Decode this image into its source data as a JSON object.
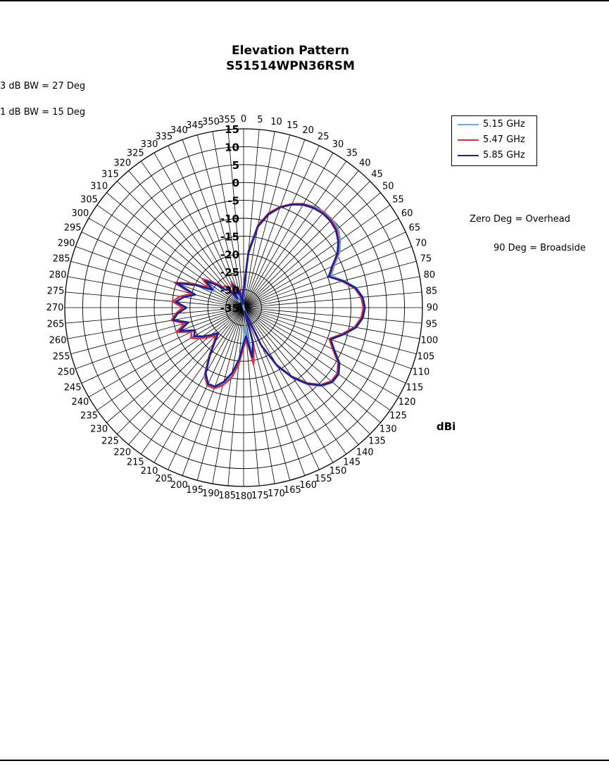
{
  "chart_data": {
    "type": "polar-line",
    "title": "Elevation Pattern",
    "subtitle": "S51514WPN36RSM",
    "ylabel": "dBi",
    "r_range": [
      -35,
      15
    ],
    "r_ticks": [
      15,
      10,
      5,
      0,
      -5,
      -10,
      -15,
      -20,
      -25,
      -30,
      -35
    ],
    "r_tick_labels": [
      "15",
      "10",
      "5",
      "0",
      "-5",
      "-10",
      "-15",
      "-20",
      "-25",
      "-30",
      "-35"
    ],
    "angle_ticks": [
      0,
      5,
      10,
      15,
      20,
      25,
      30,
      35,
      40,
      45,
      50,
      55,
      60,
      65,
      70,
      75,
      80,
      85,
      90,
      95,
      100,
      105,
      110,
      115,
      120,
      125,
      130,
      135,
      140,
      145,
      150,
      155,
      160,
      165,
      170,
      175,
      180,
      185,
      190,
      195,
      200,
      205,
      210,
      215,
      220,
      225,
      230,
      235,
      240,
      245,
      250,
      255,
      260,
      265,
      270,
      275,
      280,
      285,
      290,
      295,
      300,
      305,
      310,
      315,
      320,
      325,
      330,
      335,
      340,
      345,
      350,
      355
    ],
    "angle_tick_labels": [
      "0",
      "5",
      "10",
      "15",
      "20",
      "25",
      "30",
      "35",
      "40",
      "45",
      "50",
      "55",
      "60",
      "65",
      "70",
      "75",
      "80",
      "85",
      "90",
      "95",
      "100",
      "105",
      "110",
      "115",
      "120",
      "125",
      "130",
      "135",
      "140",
      "145",
      "150",
      "155",
      "160",
      "165",
      "170",
      "175",
      "180",
      "185",
      "190",
      "195",
      "200",
      "205",
      "210",
      "215",
      "220",
      "225",
      "230",
      "235",
      "240",
      "245",
      "250",
      "255",
      "260",
      "265",
      "270",
      "275",
      "280",
      "285",
      "290",
      "295",
      "300",
      "305",
      "310",
      "315",
      "320",
      "325",
      "330",
      "335",
      "340",
      "345",
      "350",
      "355"
    ],
    "annotations": [
      "3 dB BW = 27 Deg",
      "1 dB BW = 15 Deg",
      "Zero Deg = Overhead",
      "90 Deg = Broadside"
    ],
    "legend_position": "top-right",
    "grid": true,
    "angles": [
      0,
      5,
      10,
      15,
      20,
      25,
      30,
      35,
      40,
      45,
      50,
      55,
      60,
      65,
      70,
      75,
      80,
      85,
      90,
      95,
      100,
      105,
      110,
      115,
      120,
      125,
      130,
      135,
      140,
      145,
      150,
      155,
      160,
      165,
      170,
      175,
      180,
      185,
      190,
      195,
      200,
      205,
      210,
      215,
      220,
      225,
      230,
      235,
      240,
      245,
      250,
      255,
      260,
      265,
      270,
      275,
      280,
      285,
      290,
      295,
      300,
      305,
      310,
      315,
      320,
      325,
      330,
      335,
      340,
      345,
      350,
      355
    ],
    "series": [
      {
        "name": "5.15 GHz",
        "color": "#6fa8dc",
        "values": [
          -30,
          -20,
          -12,
          -8,
          -5,
          -3,
          -1.5,
          -0.5,
          0,
          0,
          -0.5,
          -2,
          -4,
          -7,
          -9,
          -6,
          -3,
          -1.5,
          -1,
          -1.5,
          -3,
          -6,
          -9,
          -7,
          -4,
          -2.5,
          -2.5,
          -4,
          -7,
          -11,
          -16,
          -23,
          -35,
          -24,
          -20,
          -30,
          -26,
          -20,
          -16,
          -13,
          -11,
          -11,
          -13,
          -18,
          -22,
          -25,
          -23,
          -21,
          -19,
          -20,
          -16,
          -19,
          -15,
          -16,
          -19,
          -16,
          -18,
          -21,
          -15,
          -20,
          -26,
          -22,
          -25,
          -28,
          -28,
          -33,
          -30,
          -28,
          -32,
          -30,
          -35,
          -33
        ]
      },
      {
        "name": "5.47 GHz",
        "color": "#d9343c",
        "values": [
          -30,
          -19,
          -11.5,
          -7.5,
          -5,
          -3,
          -1.5,
          -0.8,
          -0.3,
          -0.3,
          -1,
          -2.5,
          -4.5,
          -7.5,
          -9.5,
          -6.5,
          -3.5,
          -2,
          -1.5,
          -2,
          -3.5,
          -6.5,
          -9.5,
          -7.5,
          -4.5,
          -3,
          -3,
          -4.5,
          -7.5,
          -11.5,
          -16.5,
          -23,
          -33,
          -24,
          -19,
          -26,
          -24,
          -19,
          -15,
          -12.5,
          -11,
          -11,
          -13.5,
          -18,
          -22,
          -24,
          -22,
          -20,
          -18,
          -19,
          -15,
          -18,
          -14.5,
          -16,
          -18,
          -15,
          -17,
          -20,
          -14.5,
          -19,
          -24,
          -21,
          -24,
          -27,
          -27,
          -30,
          -29,
          -27,
          -30,
          -29,
          -33,
          -31
        ]
      },
      {
        "name": "5.85 GHz",
        "color": "#1b1e9c",
        "values": [
          -30,
          -19.5,
          -12,
          -8,
          -5.2,
          -3.2,
          -1.8,
          -1,
          -0.6,
          -0.7,
          -1.3,
          -2.7,
          -4.7,
          -7.7,
          -9.7,
          -6.2,
          -3.2,
          -1.6,
          -1.1,
          -1.6,
          -3.1,
          -6.1,
          -9.1,
          -7.1,
          -4.1,
          -2.6,
          -2.7,
          -4.2,
          -7.2,
          -11.2,
          -16.2,
          -23.5,
          -34,
          -25,
          -21,
          -27,
          -25,
          -20.5,
          -16.5,
          -13.5,
          -11.5,
          -11.5,
          -13.8,
          -18.5,
          -22.5,
          -25,
          -23,
          -21,
          -19,
          -20,
          -16,
          -19,
          -15,
          -16.5,
          -19,
          -16,
          -18,
          -21,
          -15,
          -20,
          -25,
          -22,
          -25,
          -28,
          -28,
          -32,
          -30,
          -28,
          -31,
          -30,
          -34,
          -32
        ]
      }
    ]
  }
}
